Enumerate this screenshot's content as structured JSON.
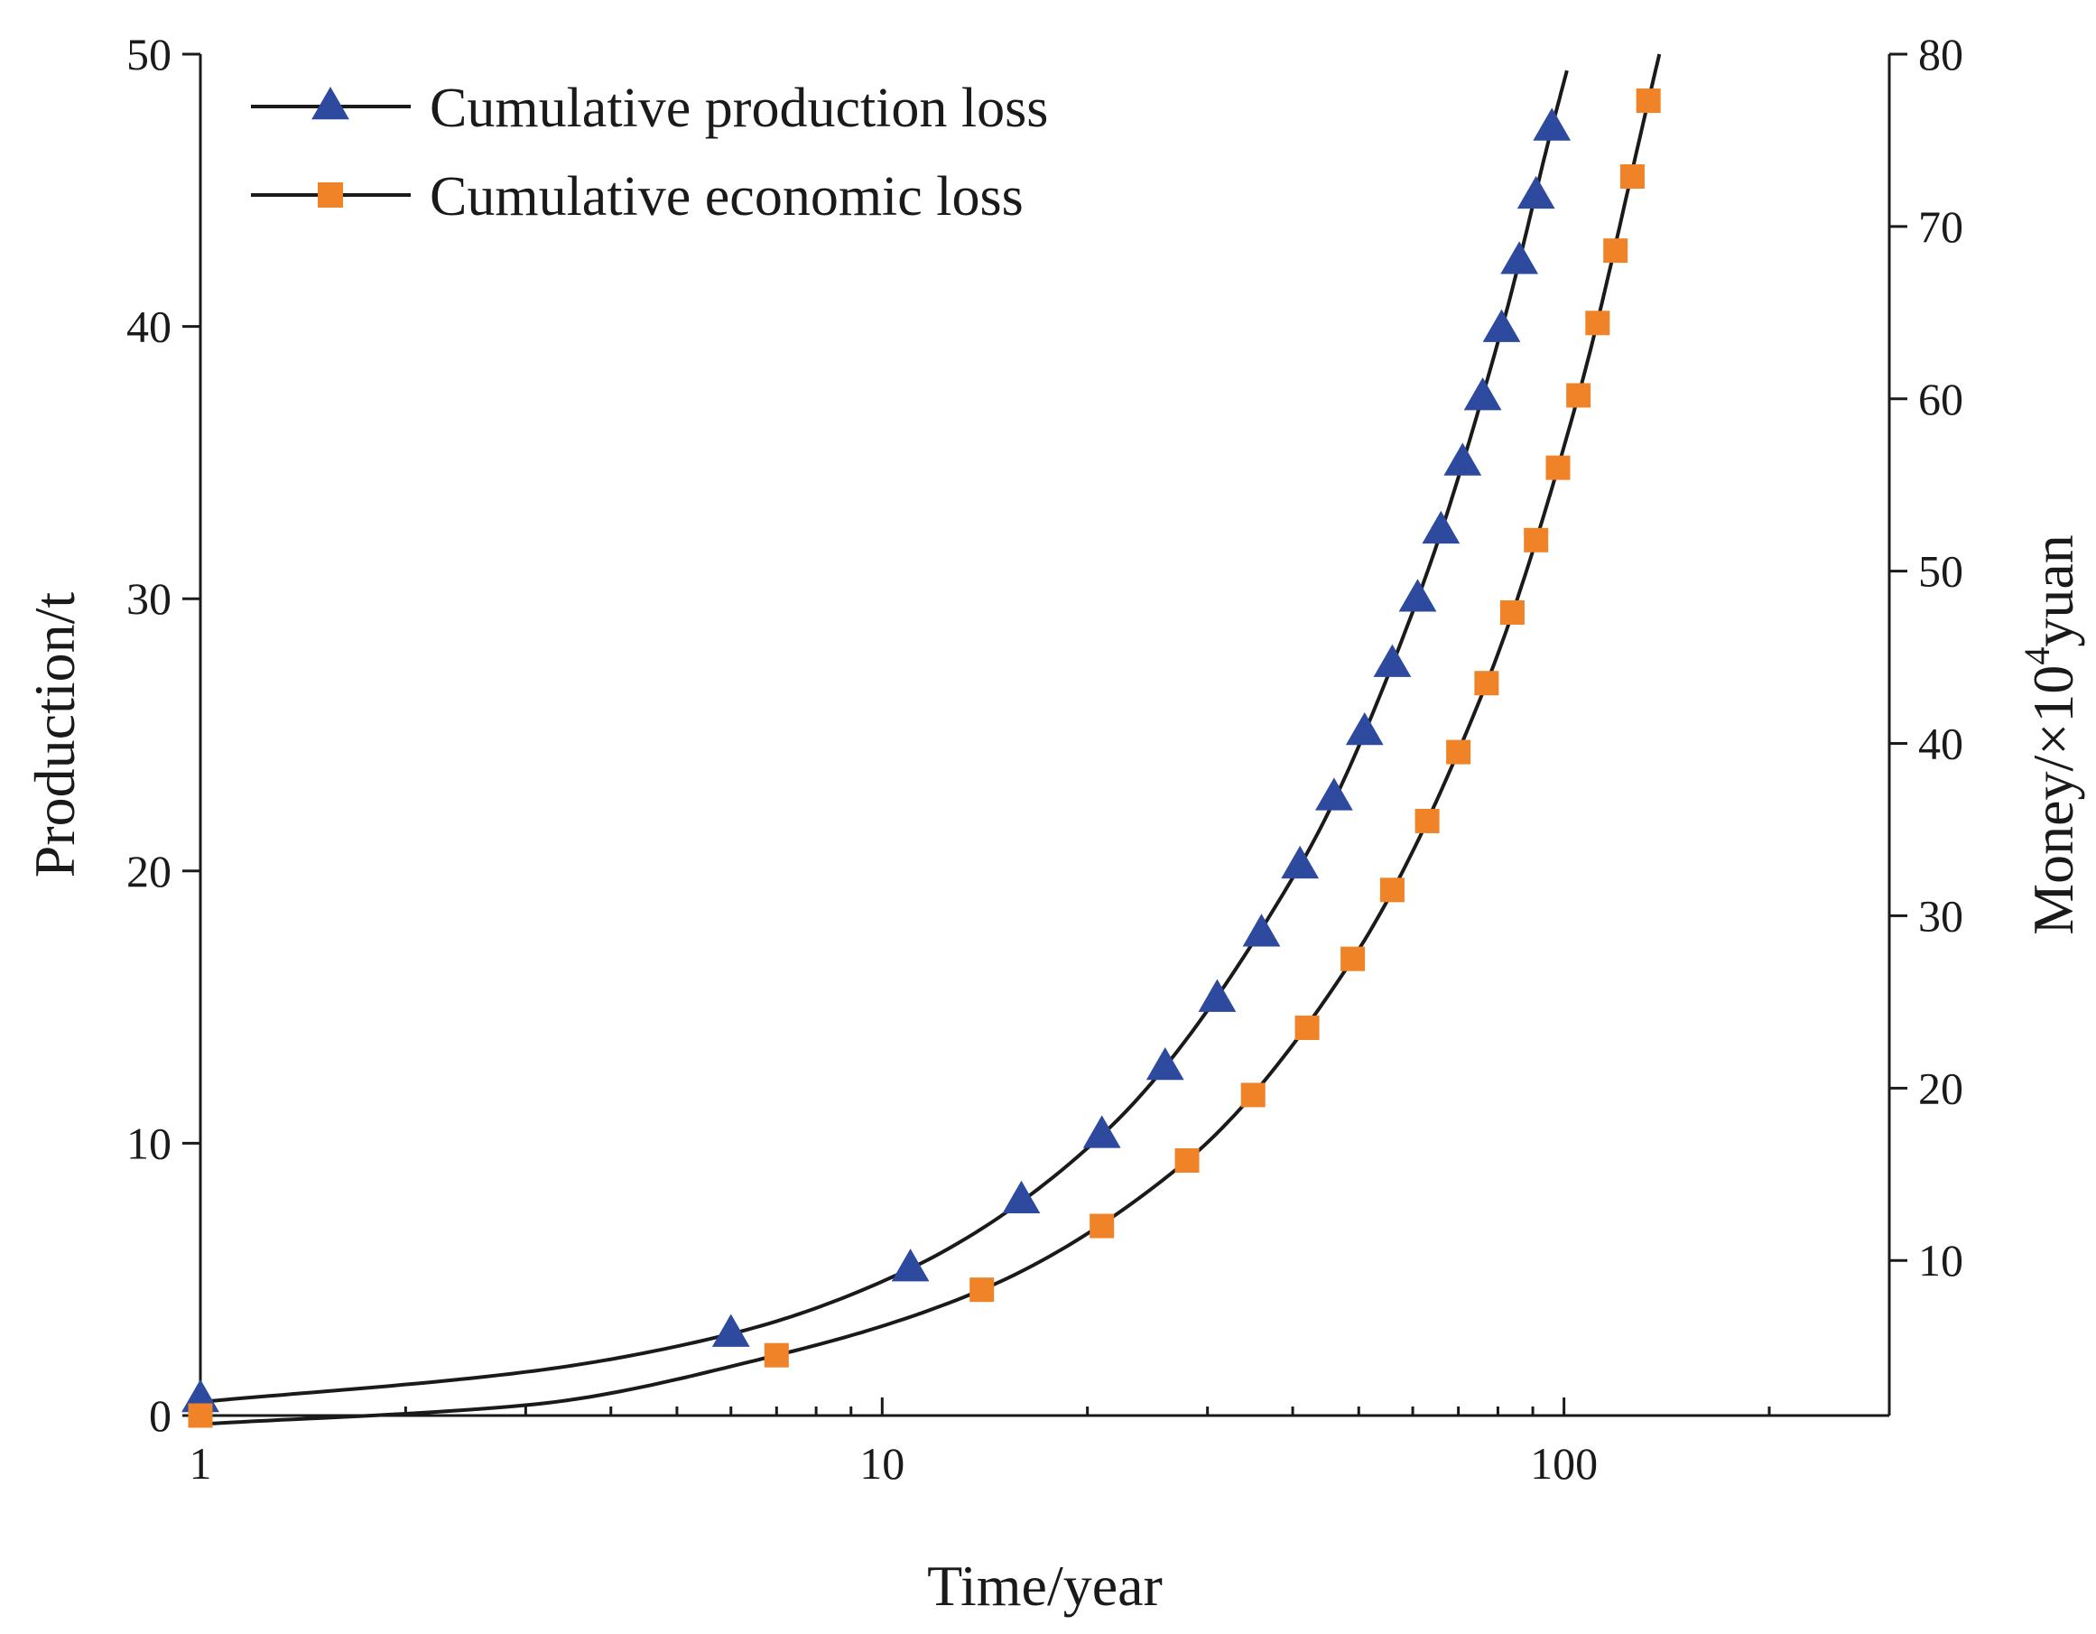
{
  "chart_data": {
    "type": "line",
    "xscale": "log",
    "xlabel": "Time/year",
    "ylabel": "Production/t",
    "y2label_prefix": "Money/×10",
    "y2label_sup": "4",
    "y2label_suffix": "yuan",
    "xlim": [
      1,
      300
    ],
    "ylim": [
      0,
      50
    ],
    "y2lim": [
      1,
      80
    ],
    "xticks": [
      {
        "value": 1,
        "label": "1"
      },
      {
        "value": 10,
        "label": "10"
      },
      {
        "value": 100,
        "label": "100"
      }
    ],
    "yticks": [
      {
        "value": 0,
        "label": "0"
      },
      {
        "value": 10,
        "label": "10"
      },
      {
        "value": 20,
        "label": "20"
      },
      {
        "value": 30,
        "label": "30"
      },
      {
        "value": 40,
        "label": "40"
      },
      {
        "value": 50,
        "label": "50"
      }
    ],
    "y2ticks": [
      {
        "value": 10,
        "label": "10"
      },
      {
        "value": 20,
        "label": "20"
      },
      {
        "value": 30,
        "label": "30"
      },
      {
        "value": 40,
        "label": "40"
      },
      {
        "value": 50,
        "label": "50"
      },
      {
        "value": 60,
        "label": "60"
      },
      {
        "value": 70,
        "label": "70"
      },
      {
        "value": 80,
        "label": "80"
      }
    ],
    "legend_position": "top-left",
    "series": [
      {
        "name": "Cumulative production loss",
        "axis": "left",
        "marker": "triangle",
        "color": "#2e4a9e",
        "points": [
          [
            1,
            0.6
          ],
          [
            6,
            3.0
          ],
          [
            11,
            5.4
          ],
          [
            16,
            7.9
          ],
          [
            21,
            10.3
          ],
          [
            26,
            12.8
          ],
          [
            31,
            15.3
          ],
          [
            36,
            17.7
          ],
          [
            41,
            20.2
          ],
          [
            46,
            22.7
          ],
          [
            51,
            25.1
          ],
          [
            56,
            27.6
          ],
          [
            61,
            30.0
          ],
          [
            66,
            32.5
          ],
          [
            71,
            35.0
          ],
          [
            76,
            37.4
          ],
          [
            81,
            39.9
          ],
          [
            86,
            42.4
          ],
          [
            91,
            44.8
          ],
          [
            96,
            47.3
          ]
        ],
        "curve": [
          [
            1,
            0.5
          ],
          [
            3,
            1.6
          ],
          [
            6,
            3.0
          ],
          [
            11,
            5.4
          ],
          [
            21,
            10.3
          ],
          [
            41,
            20.2
          ],
          [
            61,
            30.0
          ],
          [
            81,
            39.9
          ],
          [
            96,
            47.3
          ],
          [
            101,
            49.4
          ]
        ]
      },
      {
        "name": "Cumulative economic loss",
        "axis": "right",
        "marker": "square",
        "color": "#f08228",
        "points": [
          [
            1,
            1.0
          ],
          [
            7,
            4.5
          ],
          [
            14,
            8.3
          ],
          [
            21,
            12.0
          ],
          [
            28,
            15.8
          ],
          [
            35,
            19.6
          ],
          [
            42,
            23.5
          ],
          [
            49,
            27.5
          ],
          [
            56,
            31.5
          ],
          [
            63,
            35.5
          ],
          [
            70,
            39.5
          ],
          [
            77,
            43.5
          ],
          [
            84,
            47.6
          ],
          [
            91,
            51.8
          ],
          [
            98,
            56.0
          ],
          [
            105,
            60.2
          ],
          [
            112,
            64.4
          ],
          [
            119,
            68.6
          ],
          [
            126,
            72.9
          ],
          [
            133,
            77.3
          ]
        ],
        "curve": [
          [
            1,
            0.5
          ],
          [
            3,
            1.6
          ],
          [
            7,
            4.5
          ],
          [
            14,
            8.3
          ],
          [
            28,
            15.8
          ],
          [
            49,
            27.5
          ],
          [
            77,
            43.5
          ],
          [
            105,
            60.2
          ],
          [
            133,
            77.3
          ],
          [
            138,
            80.0
          ]
        ]
      }
    ]
  }
}
